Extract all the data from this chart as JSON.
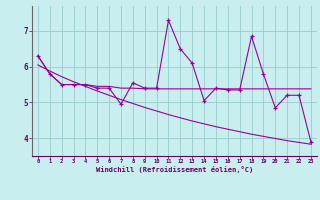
{
  "xlabel": "Windchill (Refroidissement éolien,°C)",
  "background_color": "#c8eef0",
  "line_color": "#990099",
  "grid_color": "#99cccc",
  "x_data": [
    0,
    1,
    2,
    3,
    4,
    5,
    6,
    7,
    8,
    9,
    10,
    11,
    12,
    13,
    14,
    15,
    16,
    17,
    18,
    19,
    20,
    21,
    22,
    23
  ],
  "y_main": [
    6.3,
    5.8,
    5.5,
    5.5,
    5.5,
    5.4,
    5.4,
    4.95,
    5.55,
    5.4,
    5.4,
    7.3,
    6.5,
    6.1,
    5.05,
    5.4,
    5.35,
    5.35,
    6.85,
    5.8,
    4.85,
    5.2,
    5.2,
    3.9
  ],
  "y_smooth": [
    6.3,
    5.8,
    5.5,
    5.5,
    5.5,
    5.45,
    5.45,
    5.4,
    5.4,
    5.38,
    5.38,
    5.38,
    5.38,
    5.38,
    5.38,
    5.38,
    5.38,
    5.38,
    5.38,
    5.38,
    5.38,
    5.38,
    5.38,
    5.38
  ],
  "y_linear": [
    6.05,
    5.88,
    5.72,
    5.58,
    5.45,
    5.32,
    5.2,
    5.08,
    4.97,
    4.86,
    4.76,
    4.66,
    4.57,
    4.48,
    4.4,
    4.32,
    4.25,
    4.18,
    4.11,
    4.05,
    3.99,
    3.93,
    3.88,
    3.83
  ],
  "ylim": [
    3.5,
    7.7
  ],
  "xlim": [
    -0.5,
    23.5
  ],
  "yticks": [
    4,
    5,
    6,
    7
  ],
  "xticks": [
    0,
    1,
    2,
    3,
    4,
    5,
    6,
    7,
    8,
    9,
    10,
    11,
    12,
    13,
    14,
    15,
    16,
    17,
    18,
    19,
    20,
    21,
    22,
    23
  ]
}
